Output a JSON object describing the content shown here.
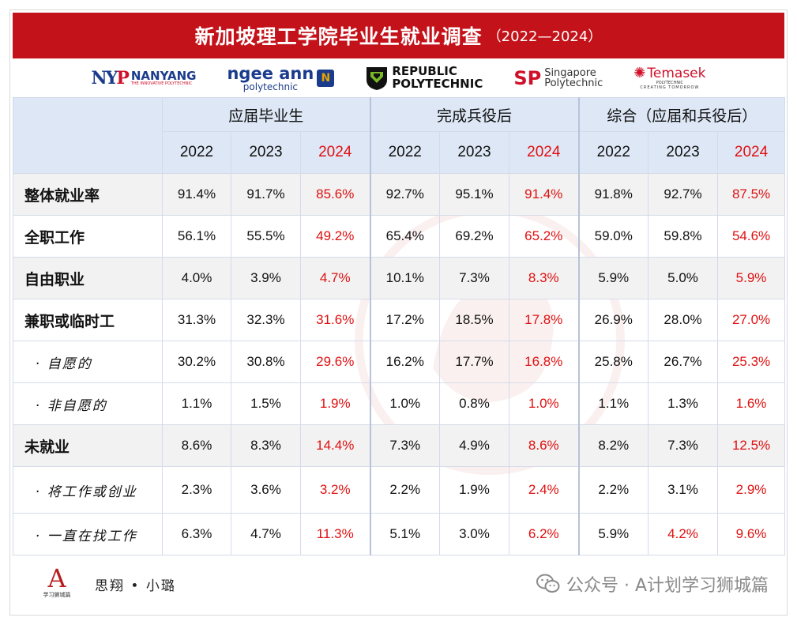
{
  "title": {
    "main": "新加坡理工学院毕业生就业调查",
    "years": "（2022—2024）"
  },
  "logos": {
    "nyp": {
      "mark": "NY",
      "mark_p": "P",
      "name": "NANYANG",
      "tag": "THE INNOVATIVE POLYTECHNIC"
    },
    "np": {
      "line1": "ngee ann",
      "line2": "polytechnic",
      "box": "N"
    },
    "rp": {
      "line1": "REPUBLIC",
      "line2": "POLYTECHNIC"
    },
    "sp": {
      "mark": "SP",
      "line1": "Singapore",
      "line2": "Polytechnic"
    },
    "tp": {
      "name": "Temasek",
      "sub": "POLYTECHNIC",
      "tag": "CREATING TOMORROW"
    }
  },
  "colors": {
    "title_bg": "#c4121a",
    "header_bg": "#dde7f5",
    "accent_red": "#e01010",
    "row_shade": "#f2f2f2"
  },
  "table": {
    "groups": [
      "应届毕业生",
      "完成兵役后",
      "综合（应届和兵役后）"
    ],
    "years": [
      "2022",
      "2023",
      "2024"
    ],
    "rows": [
      {
        "label": "整体就业率",
        "values": [
          "91.4%",
          "91.7%",
          "85.6%",
          "92.7%",
          "95.1%",
          "91.4%",
          "91.8%",
          "92.7%",
          "87.5%"
        ]
      },
      {
        "label": "全职工作",
        "values": [
          "56.1%",
          "55.5%",
          "49.2%",
          "65.4%",
          "69.2%",
          "65.2%",
          "59.0%",
          "59.8%",
          "54.6%"
        ]
      },
      {
        "label": "自由职业",
        "values": [
          "4.0%",
          "3.9%",
          "4.7%",
          "10.1%",
          "7.3%",
          "8.3%",
          "5.9%",
          "5.0%",
          "5.9%"
        ]
      },
      {
        "label": "兼职或临时工",
        "values": [
          "31.3%",
          "32.3%",
          "31.6%",
          "17.2%",
          "18.5%",
          "17.8%",
          "26.9%",
          "28.0%",
          "27.0%"
        ]
      },
      {
        "label": "· 自愿的",
        "values": [
          "30.2%",
          "30.8%",
          "29.6%",
          "16.2%",
          "17.7%",
          "16.8%",
          "25.8%",
          "26.7%",
          "25.3%"
        ]
      },
      {
        "label": "· 非自愿的",
        "values": [
          "1.1%",
          "1.5%",
          "1.9%",
          "1.0%",
          "0.8%",
          "1.0%",
          "1.1%",
          "1.3%",
          "1.6%"
        ]
      },
      {
        "label": "未就业",
        "values": [
          "8.6%",
          "8.3%",
          "14.4%",
          "7.3%",
          "4.9%",
          "8.6%",
          "8.2%",
          "7.3%",
          "12.5%"
        ]
      },
      {
        "label": "· 将工作或创业",
        "values": [
          "2.3%",
          "3.6%",
          "3.2%",
          "2.2%",
          "1.9%",
          "2.4%",
          "2.2%",
          "3.1%",
          "2.9%"
        ]
      },
      {
        "label": "· 一直在找工作",
        "values": [
          "6.3%",
          "4.7%",
          "11.3%",
          "5.1%",
          "3.0%",
          "6.2%",
          "5.9%",
          "4.2%",
          "9.6%"
        ]
      }
    ]
  },
  "footer": {
    "author": "思翔 • 小璐",
    "logo_text": "学习狮城篇",
    "watermark": "公众号 · A计划学习狮城篇"
  }
}
